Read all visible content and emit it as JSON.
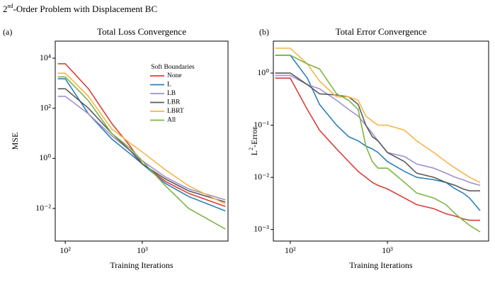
{
  "title": [
    "2",
    "nd",
    "-Order Problem with  Displacement BC"
  ],
  "chart_data": [
    {
      "type": "line",
      "panel": "(a)",
      "title": "Total Loss Convergence",
      "xlabel": "Training Iterations",
      "ylabel": [
        "MSE"
      ],
      "xscale": "log",
      "yscale": "log",
      "xlim": [
        74,
        13000
      ],
      "ylim": [
        48000,
        0.0005
      ],
      "xticks": [
        {
          "value": 100,
          "label": "10²"
        },
        {
          "value": 1000,
          "label": "10³"
        }
      ],
      "yticks": [
        {
          "value": 10000,
          "label": "10⁴"
        },
        {
          "value": 100,
          "label": "10²"
        },
        {
          "value": 1,
          "label": "10⁰"
        },
        {
          "value": 0.01,
          "label": "10⁻²"
        }
      ],
      "legend_title": "Soft Boundaries",
      "x": [
        80,
        100,
        200,
        400,
        700,
        1000,
        2000,
        4000,
        12000
      ],
      "series": [
        {
          "name": "None",
          "color": "#d6403a",
          "values": [
            6000,
            6000,
            600,
            25,
            3,
            0.6,
            0.12,
            0.04,
            0.012
          ]
        },
        {
          "name": "L",
          "color": "#2e7fb8",
          "values": [
            1500,
            1500,
            60,
            6,
            1.5,
            0.6,
            0.1,
            0.03,
            0.008
          ]
        },
        {
          "name": "LB",
          "color": "#a28fd0",
          "values": [
            300,
            300,
            60,
            8,
            2,
            0.8,
            0.18,
            0.06,
            0.022
          ]
        },
        {
          "name": "LBR",
          "color": "#5a5a5a",
          "values": [
            600,
            600,
            100,
            10,
            2,
            0.6,
            0.15,
            0.05,
            0.018
          ]
        },
        {
          "name": "LBRT",
          "color": "#f5b54a",
          "values": [
            2500,
            2500,
            300,
            15,
            4,
            1.8,
            0.35,
            0.08,
            0.015
          ]
        },
        {
          "name": "All",
          "color": "#7db544",
          "values": [
            1800,
            1800,
            200,
            10,
            2.5,
            0.8,
            0.08,
            0.01,
            0.0015
          ]
        }
      ]
    },
    {
      "type": "line",
      "panel": "(b)",
      "title": "Total Error Convergence",
      "xlabel": "Training Iterations",
      "ylabel": [
        "L",
        "2",
        "-Error"
      ],
      "xscale": "log",
      "yscale": "log",
      "xlim": [
        67,
        11000
      ],
      "ylim": [
        4.1,
        0.0006
      ],
      "xticks": [
        {
          "value": 100,
          "label": "10²"
        },
        {
          "value": 1000,
          "label": "10³"
        }
      ],
      "yticks": [
        {
          "value": 1,
          "label": "10⁰"
        },
        {
          "value": 0.1,
          "label": "10⁻¹"
        },
        {
          "value": 0.01,
          "label": "10⁻²"
        },
        {
          "value": 0.001,
          "label": "10⁻³"
        }
      ],
      "x": [
        70,
        100,
        150,
        200,
        300,
        400,
        500,
        600,
        700,
        800,
        1000,
        1500,
        2000,
        3000,
        4000,
        5000,
        6000,
        7000,
        9000
      ],
      "series": [
        {
          "color": "#d6403a",
          "values": [
            0.8,
            0.8,
            0.2,
            0.08,
            0.035,
            0.02,
            0.013,
            0.01,
            0.008,
            0.007,
            0.006,
            0.004,
            0.003,
            0.0025,
            0.002,
            0.0018,
            0.0016,
            0.0015,
            0.0015
          ]
        },
        {
          "color": "#2e7fb8",
          "values": [
            2.2,
            2.2,
            0.8,
            0.25,
            0.1,
            0.06,
            0.05,
            0.04,
            0.035,
            0.03,
            0.02,
            0.013,
            0.01,
            0.009,
            0.008,
            0.006,
            0.005,
            0.004,
            0.0023
          ]
        },
        {
          "color": "#a28fd0",
          "values": [
            0.9,
            0.9,
            0.6,
            0.5,
            0.3,
            0.2,
            0.15,
            0.1,
            0.07,
            0.05,
            0.03,
            0.025,
            0.018,
            0.015,
            0.012,
            0.01,
            0.009,
            0.008,
            0.007
          ]
        },
        {
          "color": "#5a5a5a",
          "values": [
            1.0,
            1.0,
            0.6,
            0.4,
            0.38,
            0.35,
            0.25,
            0.1,
            0.06,
            0.05,
            0.03,
            0.02,
            0.012,
            0.01,
            0.008,
            0.007,
            0.006,
            0.0055,
            0.0055
          ]
        },
        {
          "color": "#f5b54a",
          "values": [
            3,
            3,
            1.5,
            0.7,
            0.35,
            0.35,
            0.3,
            0.15,
            0.12,
            0.1,
            0.1,
            0.08,
            0.05,
            0.03,
            0.02,
            0.015,
            0.012,
            0.01,
            0.008
          ]
        },
        {
          "color": "#7db544",
          "values": [
            2.2,
            2.2,
            1.5,
            1.2,
            0.4,
            0.3,
            0.2,
            0.04,
            0.02,
            0.015,
            0.015,
            0.008,
            0.005,
            0.004,
            0.003,
            0.002,
            0.0015,
            0.0012,
            0.0009
          ]
        }
      ]
    }
  ]
}
